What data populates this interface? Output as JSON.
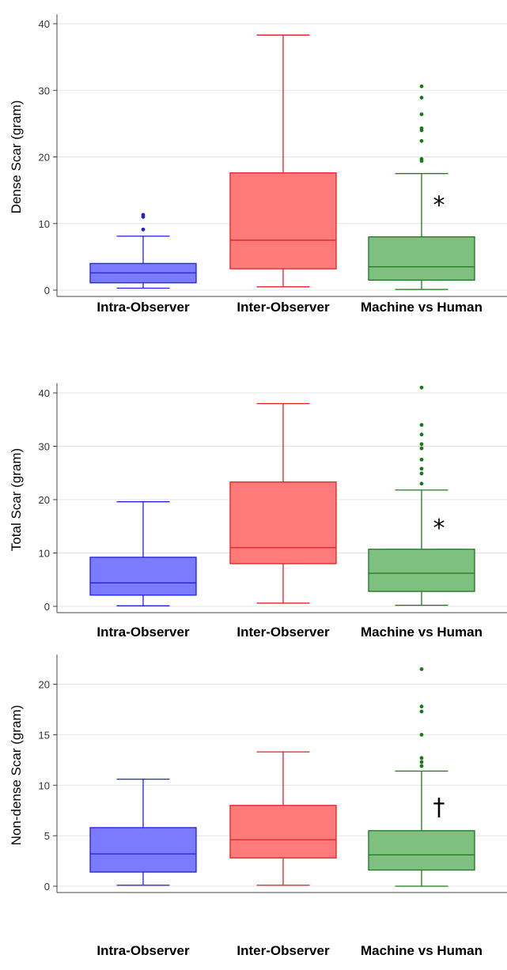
{
  "chart_data": [
    {
      "type": "boxplot",
      "ylabel": "Dense Scar (gram)",
      "ylim": [
        0,
        40
      ],
      "yticks": [
        0,
        10,
        20,
        30,
        40
      ],
      "categories": [
        "Intra-Observer",
        "Inter-Observer",
        "Machine vs Human"
      ],
      "grid": "horizontal",
      "annotation": {
        "category": "Machine vs Human",
        "text": "*",
        "y": 13
      },
      "series": [
        {
          "category": "Intra-Observer",
          "color": "#7b7bff",
          "edge": "#2020e0",
          "min": 0.3,
          "q1": 1.1,
          "median": 2.6,
          "q3": 4.0,
          "max": 8.1,
          "outliers": [
            9.1,
            11.0,
            11.3
          ]
        },
        {
          "category": "Inter-Observer",
          "color": "#ff7b7b",
          "edge": "#e02020",
          "min": 0.5,
          "q1": 3.2,
          "median": 7.5,
          "q3": 17.6,
          "max": 38.3,
          "outliers": []
        },
        {
          "category": "Machine vs Human",
          "color": "#7fbf7f",
          "edge": "#1a7a1a",
          "min": 0.1,
          "q1": 1.5,
          "median": 3.5,
          "q3": 8.0,
          "max": 17.5,
          "outliers": [
            19.4,
            19.7,
            22.4,
            24.0,
            24.3,
            26.4,
            28.9,
            30.6
          ]
        }
      ]
    },
    {
      "type": "boxplot",
      "ylabel": "Total Scar (gram)",
      "ylim": [
        0,
        40
      ],
      "yticks": [
        0,
        10,
        20,
        30,
        40
      ],
      "categories": [
        "Intra-Observer",
        "Inter-Observer",
        "Machine vs Human"
      ],
      "grid": "horizontal",
      "annotation": {
        "category": "Machine vs Human",
        "text": "*",
        "y": 15
      },
      "series": [
        {
          "category": "Intra-Observer",
          "color": "#7b7bff",
          "edge": "#2020e0",
          "min": 0.1,
          "q1": 2.1,
          "median": 4.4,
          "q3": 9.2,
          "max": 19.6,
          "outliers": []
        },
        {
          "category": "Inter-Observer",
          "color": "#ff7b7b",
          "edge": "#e02020",
          "min": 0.6,
          "q1": 8.0,
          "median": 11.0,
          "q3": 23.3,
          "max": 38.0,
          "outliers": []
        },
        {
          "category": "Machine vs Human",
          "color": "#7fbf7f",
          "edge": "#1a7a1a",
          "min": 0.2,
          "q1": 2.8,
          "median": 6.2,
          "q3": 10.7,
          "max": 21.8,
          "outliers": [
            23.0,
            24.9,
            25.8,
            27.5,
            29.6,
            30.4,
            32.2,
            34.0,
            41.0
          ]
        }
      ]
    },
    {
      "type": "boxplot",
      "ylabel": "Non-dense Scar (gram)",
      "ylim": [
        0,
        22
      ],
      "yticks": [
        0,
        5,
        10,
        15,
        20
      ],
      "categories": [
        "Intra-Observer",
        "Inter-Observer",
        "Machine vs Human"
      ],
      "grid": "horizontal",
      "annotation": {
        "category": "Machine vs Human",
        "text": "†",
        "y": 8
      },
      "series": [
        {
          "category": "Intra-Observer",
          "color": "#7b7bff",
          "edge": "#2020e0",
          "min": 0.1,
          "q1": 1.4,
          "median": 3.2,
          "q3": 5.8,
          "max": 10.6,
          "outliers": []
        },
        {
          "category": "Inter-Observer",
          "color": "#ff7b7b",
          "edge": "#e02020",
          "min": 0.1,
          "q1": 2.8,
          "median": 4.6,
          "q3": 8.0,
          "max": 13.3,
          "outliers": []
        },
        {
          "category": "Machine vs Human",
          "color": "#7fbf7f",
          "edge": "#1a7a1a",
          "min": 0.0,
          "q1": 1.6,
          "median": 3.1,
          "q3": 5.5,
          "max": 11.4,
          "outliers": [
            11.9,
            12.3,
            12.7,
            15.0,
            17.3,
            17.8,
            21.5
          ]
        }
      ]
    }
  ]
}
